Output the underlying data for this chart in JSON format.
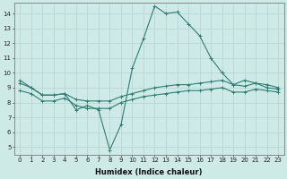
{
  "xlabel": "Humidex (Indice chaleur)",
  "xlim": [
    -0.5,
    23.5
  ],
  "ylim": [
    4.5,
    14.7
  ],
  "xticks": [
    0,
    1,
    2,
    3,
    4,
    5,
    6,
    7,
    8,
    9,
    10,
    11,
    12,
    13,
    14,
    15,
    16,
    17,
    18,
    19,
    20,
    21,
    22,
    23
  ],
  "yticks": [
    5,
    6,
    7,
    8,
    9,
    10,
    11,
    12,
    13,
    14
  ],
  "bg_color": "#ceeae7",
  "line_color": "#2e7d72",
  "grid_color": "#b8d8d5",
  "line1_y": [
    9.5,
    9.0,
    8.5,
    8.5,
    8.6,
    7.5,
    7.8,
    7.5,
    4.8,
    6.5,
    10.3,
    12.3,
    14.5,
    14.0,
    14.1,
    13.3,
    12.5,
    11.0,
    10.0,
    9.2,
    9.5,
    9.3,
    9.0,
    8.9
  ],
  "line2_y": [
    9.3,
    9.0,
    8.5,
    8.5,
    8.6,
    8.2,
    8.1,
    8.1,
    8.1,
    8.4,
    8.6,
    8.8,
    9.0,
    9.1,
    9.2,
    9.2,
    9.3,
    9.4,
    9.5,
    9.2,
    9.1,
    9.3,
    9.2,
    9.0
  ],
  "line3_y": [
    8.8,
    8.6,
    8.1,
    8.1,
    8.3,
    7.8,
    7.6,
    7.6,
    7.6,
    8.0,
    8.2,
    8.4,
    8.5,
    8.6,
    8.7,
    8.8,
    8.8,
    8.9,
    9.0,
    8.7,
    8.7,
    8.9,
    8.8,
    8.7
  ],
  "tick_fontsize": 5.0,
  "xlabel_fontsize": 6.0
}
